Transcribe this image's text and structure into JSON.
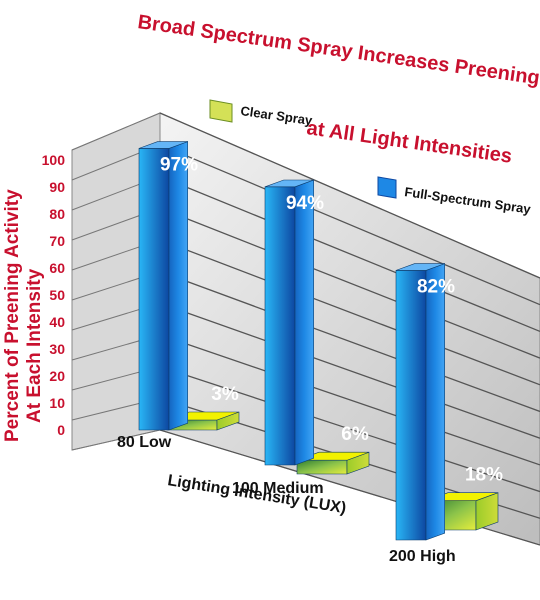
{
  "chart_data": {
    "type": "bar",
    "title": [
      "Broad Spectrum Spray Increases Preening",
      "at All Light Intensities"
    ],
    "ylabel": [
      "Percent of Preening Activity",
      "At Each Intensity"
    ],
    "xlabel": "Lighting Intensity (LUX)",
    "ylim": [
      0,
      100
    ],
    "yticks": [
      "0",
      "10",
      "20",
      "30",
      "40",
      "50",
      "60",
      "70",
      "80",
      "90",
      "100"
    ],
    "grid": true,
    "categories": [
      "80 Low",
      "100 Medium",
      "200 High"
    ],
    "series": [
      {
        "name": "Full-Spectrum Spray",
        "values": [
          97,
          94,
          82
        ],
        "labels": [
          "97%",
          "94%",
          "82%"
        ],
        "color": "#1e88e5"
      },
      {
        "name": "Clear Spray",
        "values": [
          3,
          6,
          18
        ],
        "labels": [
          "3%",
          "6%",
          "18%"
        ],
        "color": "#c6dc1e"
      }
    ]
  }
}
